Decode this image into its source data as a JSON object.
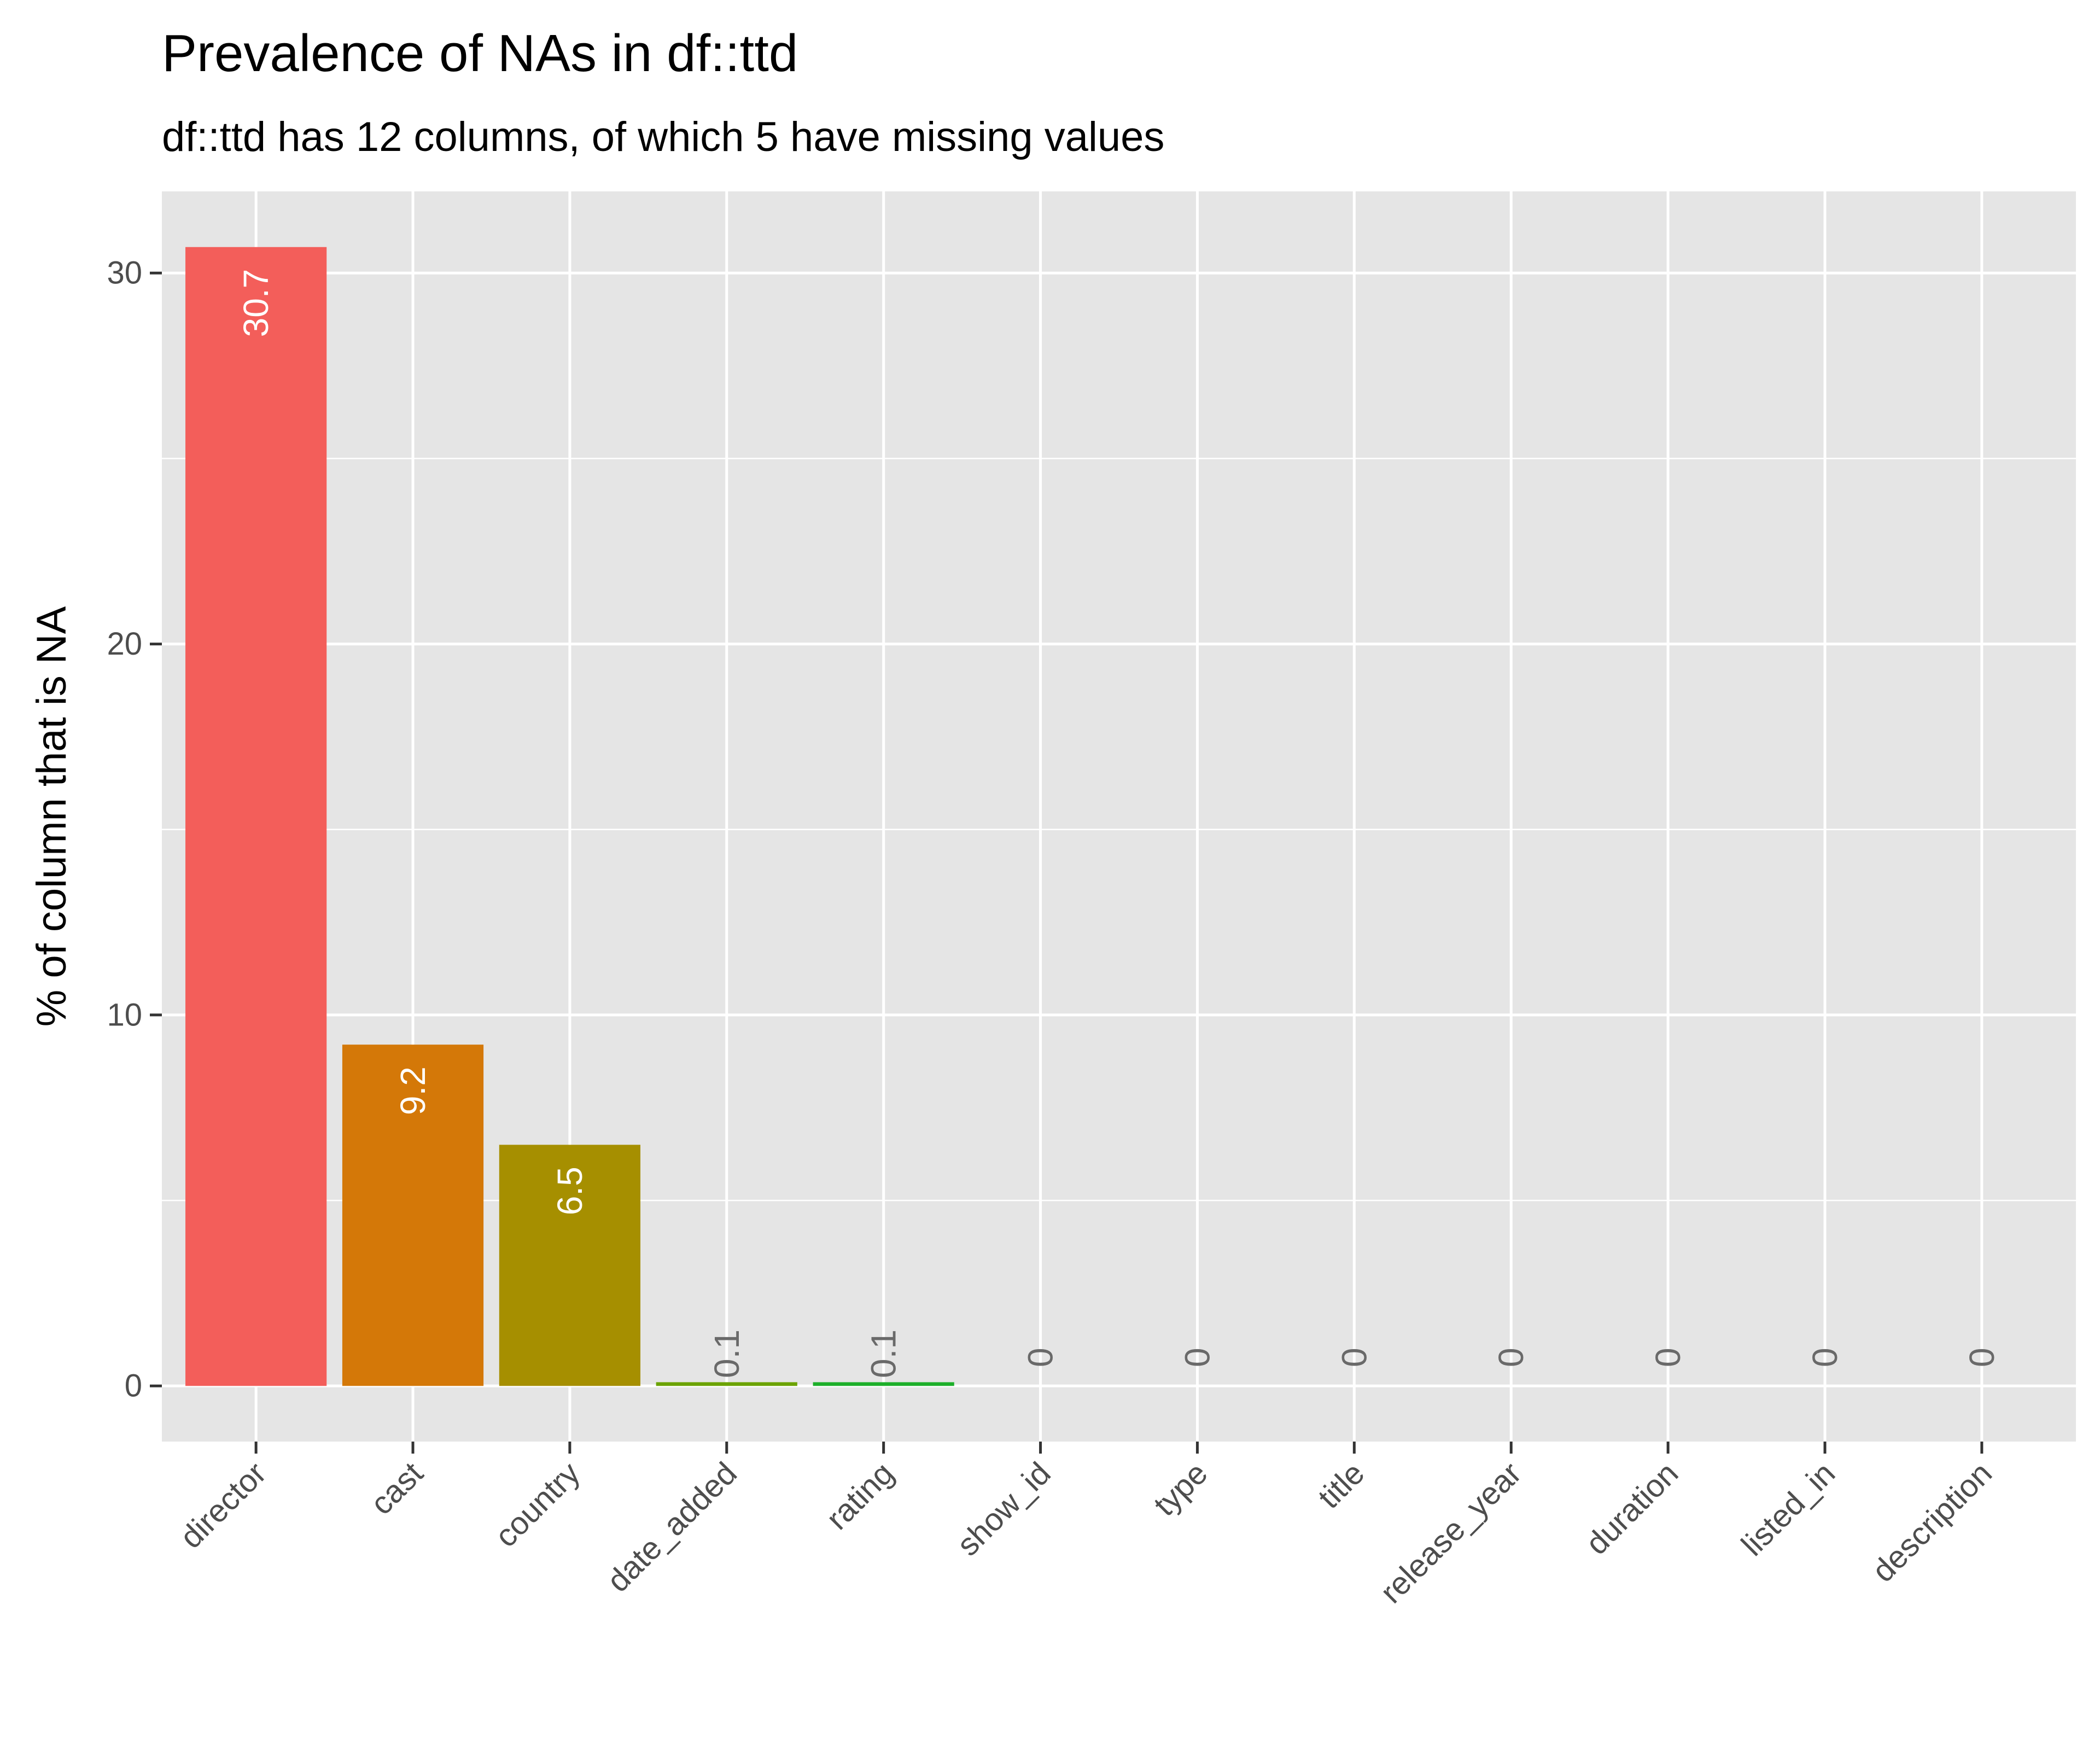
{
  "chart_data": {
    "type": "bar",
    "title": "Prevalence of NAs in df::ttd",
    "subtitle": "df::ttd has 12 columns, of which 5 have missing values",
    "xlabel": "",
    "ylabel": "% of column that is NA",
    "categories": [
      "director",
      "cast",
      "country",
      "date_added",
      "rating",
      "show_id",
      "type",
      "title",
      "release_year",
      "duration",
      "listed_in",
      "description"
    ],
    "values": [
      30.7,
      9.2,
      6.5,
      0.1,
      0.1,
      0,
      0,
      0,
      0,
      0,
      0,
      0
    ],
    "labels": [
      "30.7",
      "9.2",
      "6.5",
      "0.1",
      "0.1",
      "0",
      "0",
      "0",
      "0",
      "0",
      "0",
      "0"
    ],
    "colors": [
      "#F35E5A",
      "#D47808",
      "#A68F00",
      "#6BA300",
      "#1DAF2A",
      "#00B98A",
      "#00B7C2",
      "#00A5FF",
      "#8A8CFF",
      "#C77CFF",
      "#F564E3",
      "#FF64B0"
    ],
    "yticks": [
      0,
      10,
      20,
      30
    ],
    "ylim": [
      -1.5,
      32.2
    ],
    "grid": true,
    "legend": "none",
    "panel_background": "#E5E5E5",
    "gridline_color": "#FFFFFF",
    "label_color_inside": "#FFFFFF",
    "label_color_outside": "#696969"
  }
}
